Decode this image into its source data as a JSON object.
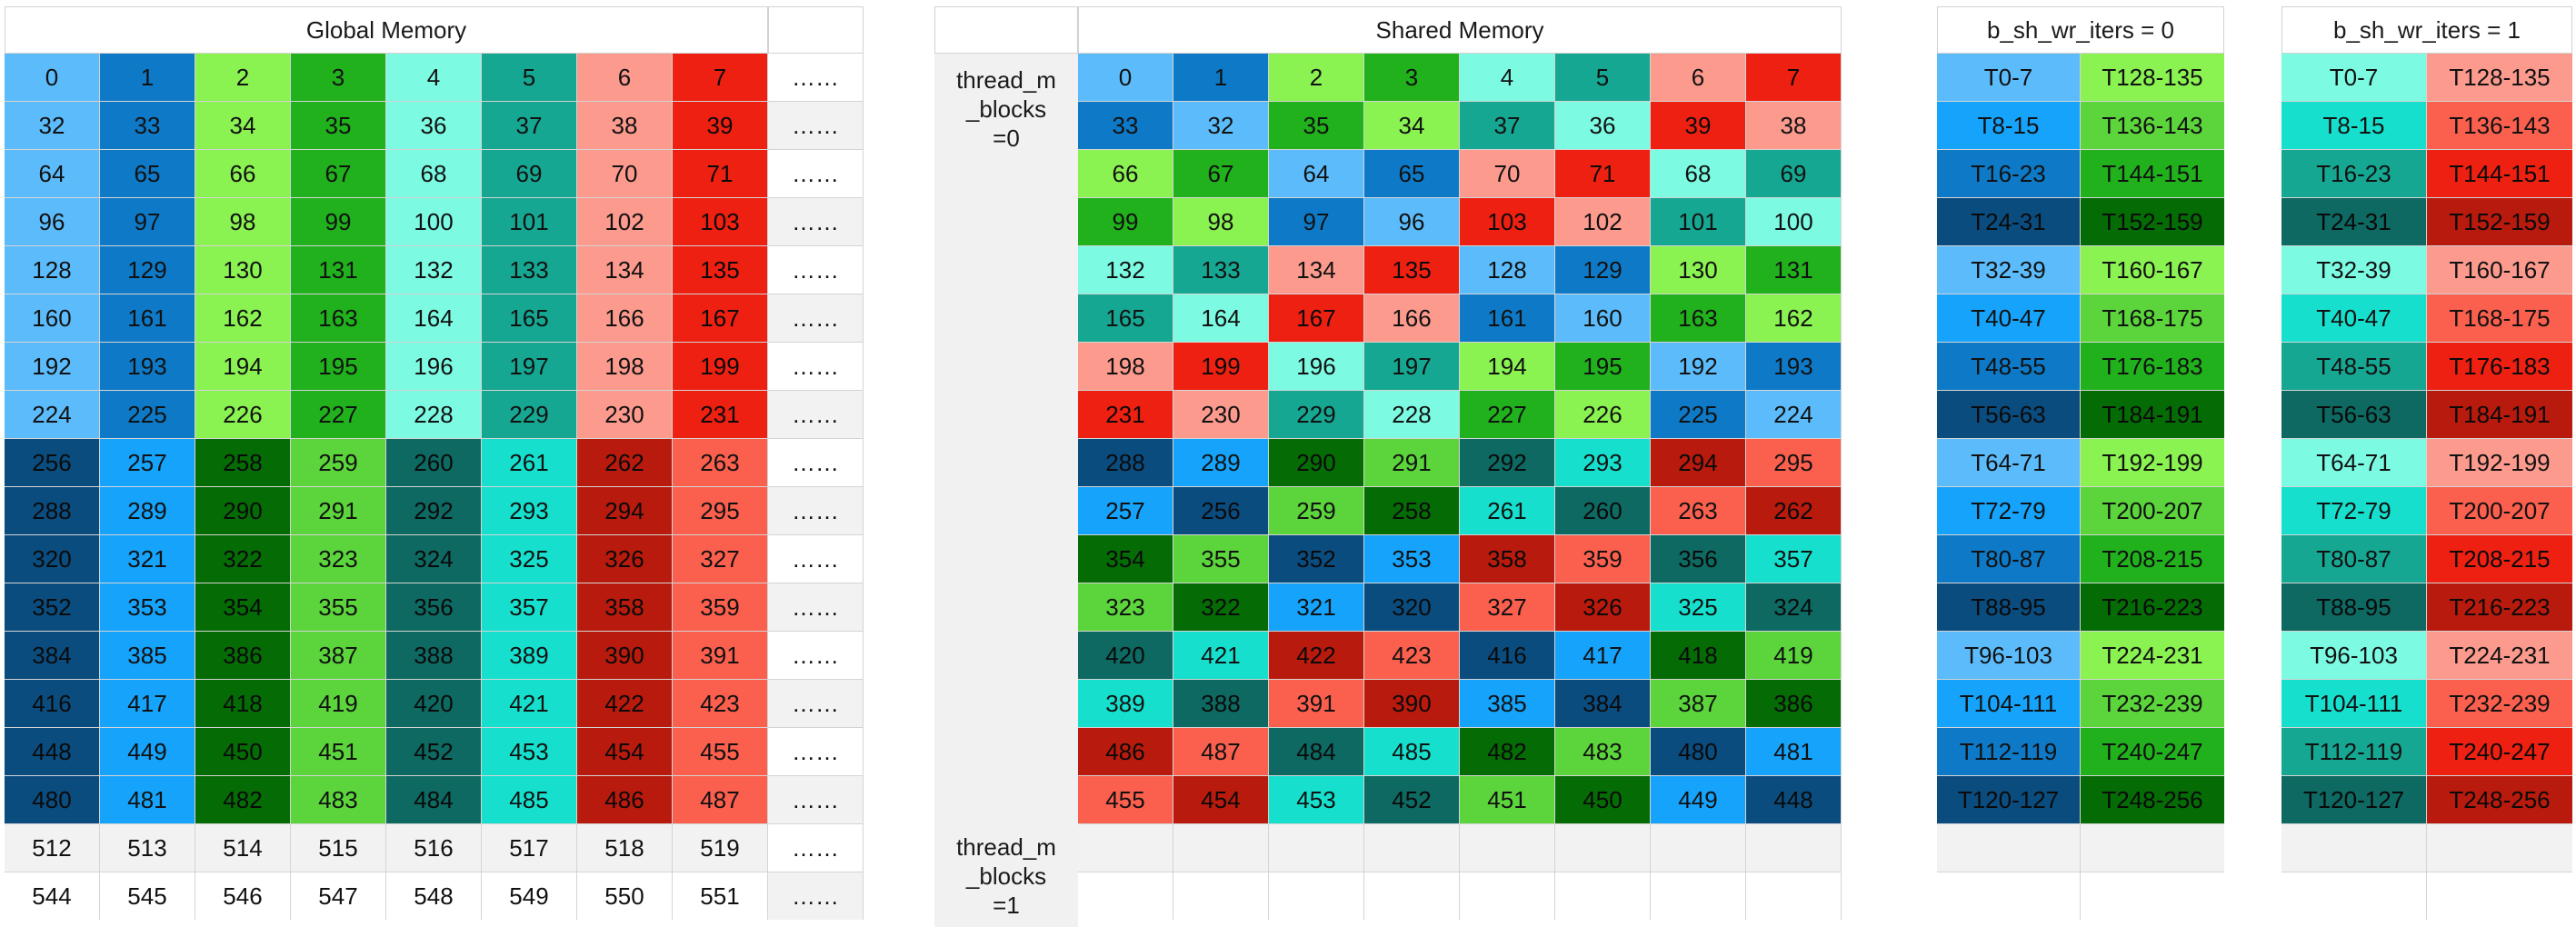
{
  "headers": {
    "global": "Global Memory",
    "shared": "Shared Memory",
    "iters0": "b_sh_wr_iters = 0",
    "iters1": "b_sh_wr_iters = 1"
  },
  "side_labels": {
    "block0": "thread_m\n_blocks\n=0",
    "block1": "thread_m\n_blocks\n=1"
  },
  "ellipsis": "……",
  "palette": {
    "lb": "#5cbcfb",
    "mb": "#0e7ac7",
    "db": "#0b4c7f",
    "bb": "#15a3fb",
    "lg": "#8af251",
    "mg": "#20b11c",
    "dg": "#056b05",
    "gg": "#5bd53b",
    "lc": "#7cfbe2",
    "mt": "#16a792",
    "dt": "#0d6961",
    "ct": "#16e0cd",
    "lr": "#fc9a8e",
    "rd": "#ee2012",
    "dr": "#b81a0d",
    "sr": "#fb5f4e",
    "wh": "#ffffff",
    "gy": "#f2f2f2"
  },
  "global_grid": {
    "values": [
      [
        0,
        1,
        2,
        3,
        4,
        5,
        6,
        7
      ],
      [
        32,
        33,
        34,
        35,
        36,
        37,
        38,
        39
      ],
      [
        64,
        65,
        66,
        67,
        68,
        69,
        70,
        71
      ],
      [
        96,
        97,
        98,
        99,
        100,
        101,
        102,
        103
      ],
      [
        128,
        129,
        130,
        131,
        132,
        133,
        134,
        135
      ],
      [
        160,
        161,
        162,
        163,
        164,
        165,
        166,
        167
      ],
      [
        192,
        193,
        194,
        195,
        196,
        197,
        198,
        199
      ],
      [
        224,
        225,
        226,
        227,
        228,
        229,
        230,
        231
      ],
      [
        256,
        257,
        258,
        259,
        260,
        261,
        262,
        263
      ],
      [
        288,
        289,
        290,
        291,
        292,
        293,
        294,
        295
      ],
      [
        320,
        321,
        322,
        323,
        324,
        325,
        326,
        327
      ],
      [
        352,
        353,
        354,
        355,
        356,
        357,
        358,
        359
      ],
      [
        384,
        385,
        386,
        387,
        388,
        389,
        390,
        391
      ],
      [
        416,
        417,
        418,
        419,
        420,
        421,
        422,
        423
      ],
      [
        448,
        449,
        450,
        451,
        452,
        453,
        454,
        455
      ],
      [
        480,
        481,
        482,
        483,
        484,
        485,
        486,
        487
      ],
      [
        512,
        513,
        514,
        515,
        516,
        517,
        518,
        519
      ],
      [
        544,
        545,
        546,
        547,
        548,
        549,
        550,
        551
      ]
    ],
    "colors": [
      [
        "lb",
        "mb",
        "lg",
        "mg",
        "lc",
        "mt",
        "lr",
        "rd"
      ],
      [
        "lb",
        "mb",
        "lg",
        "mg",
        "lc",
        "mt",
        "lr",
        "rd"
      ],
      [
        "lb",
        "mb",
        "lg",
        "mg",
        "lc",
        "mt",
        "lr",
        "rd"
      ],
      [
        "lb",
        "mb",
        "lg",
        "mg",
        "lc",
        "mt",
        "lr",
        "rd"
      ],
      [
        "lb",
        "mb",
        "lg",
        "mg",
        "lc",
        "mt",
        "lr",
        "rd"
      ],
      [
        "lb",
        "mb",
        "lg",
        "mg",
        "lc",
        "mt",
        "lr",
        "rd"
      ],
      [
        "lb",
        "mb",
        "lg",
        "mg",
        "lc",
        "mt",
        "lr",
        "rd"
      ],
      [
        "lb",
        "mb",
        "lg",
        "mg",
        "lc",
        "mt",
        "lr",
        "rd"
      ],
      [
        "db",
        "bb",
        "dg",
        "gg",
        "dt",
        "ct",
        "dr",
        "sr"
      ],
      [
        "db",
        "bb",
        "dg",
        "gg",
        "dt",
        "ct",
        "dr",
        "sr"
      ],
      [
        "db",
        "bb",
        "dg",
        "gg",
        "dt",
        "ct",
        "dr",
        "sr"
      ],
      [
        "db",
        "bb",
        "dg",
        "gg",
        "dt",
        "ct",
        "dr",
        "sr"
      ],
      [
        "db",
        "bb",
        "dg",
        "gg",
        "dt",
        "ct",
        "dr",
        "sr"
      ],
      [
        "db",
        "bb",
        "dg",
        "gg",
        "dt",
        "ct",
        "dr",
        "sr"
      ],
      [
        "db",
        "bb",
        "dg",
        "gg",
        "dt",
        "ct",
        "dr",
        "sr"
      ],
      [
        "db",
        "bb",
        "dg",
        "gg",
        "dt",
        "ct",
        "dr",
        "sr"
      ],
      [
        "gy",
        "gy",
        "gy",
        "gy",
        "gy",
        "gy",
        "gy",
        "gy"
      ],
      [
        "wh",
        "wh",
        "wh",
        "wh",
        "wh",
        "wh",
        "wh",
        "wh"
      ]
    ]
  },
  "shared_grid": {
    "values": [
      [
        0,
        1,
        2,
        3,
        4,
        5,
        6,
        7
      ],
      [
        33,
        32,
        35,
        34,
        37,
        36,
        39,
        38
      ],
      [
        66,
        67,
        64,
        65,
        70,
        71,
        68,
        69
      ],
      [
        99,
        98,
        97,
        96,
        103,
        102,
        101,
        100
      ],
      [
        132,
        133,
        134,
        135,
        128,
        129,
        130,
        131
      ],
      [
        165,
        164,
        167,
        166,
        161,
        160,
        163,
        162
      ],
      [
        198,
        199,
        196,
        197,
        194,
        195,
        192,
        193
      ],
      [
        231,
        230,
        229,
        228,
        227,
        226,
        225,
        224
      ],
      [
        288,
        289,
        290,
        291,
        292,
        293,
        294,
        295
      ],
      [
        257,
        256,
        259,
        258,
        261,
        260,
        263,
        262
      ],
      [
        354,
        355,
        352,
        353,
        358,
        359,
        356,
        357
      ],
      [
        323,
        322,
        321,
        320,
        327,
        326,
        325,
        324
      ],
      [
        420,
        421,
        422,
        423,
        416,
        417,
        418,
        419
      ],
      [
        389,
        388,
        391,
        390,
        385,
        384,
        387,
        386
      ],
      [
        486,
        487,
        484,
        485,
        482,
        483,
        480,
        481
      ],
      [
        455,
        454,
        453,
        452,
        451,
        450,
        449,
        448
      ],
      [
        "",
        "",
        "",
        "",
        "",
        "",
        "",
        ""
      ],
      [
        "",
        "",
        "",
        "",
        "",
        "",
        "",
        ""
      ]
    ],
    "colors": [
      [
        "lb",
        "mb",
        "lg",
        "mg",
        "lc",
        "mt",
        "lr",
        "rd"
      ],
      [
        "mb",
        "lb",
        "mg",
        "lg",
        "mt",
        "lc",
        "rd",
        "lr"
      ],
      [
        "lg",
        "mg",
        "lb",
        "mb",
        "lr",
        "rd",
        "lc",
        "mt"
      ],
      [
        "mg",
        "lg",
        "mb",
        "lb",
        "rd",
        "lr",
        "mt",
        "lc"
      ],
      [
        "lc",
        "mt",
        "lr",
        "rd",
        "lb",
        "mb",
        "lg",
        "mg"
      ],
      [
        "mt",
        "lc",
        "rd",
        "lr",
        "mb",
        "lb",
        "mg",
        "lg"
      ],
      [
        "lr",
        "rd",
        "lc",
        "mt",
        "lg",
        "mg",
        "lb",
        "mb"
      ],
      [
        "rd",
        "lr",
        "mt",
        "lc",
        "mg",
        "lg",
        "mb",
        "lb"
      ],
      [
        "db",
        "bb",
        "dg",
        "gg",
        "dt",
        "ct",
        "dr",
        "sr"
      ],
      [
        "bb",
        "db",
        "gg",
        "dg",
        "ct",
        "dt",
        "sr",
        "dr"
      ],
      [
        "dg",
        "gg",
        "db",
        "bb",
        "dr",
        "sr",
        "dt",
        "ct"
      ],
      [
        "gg",
        "dg",
        "bb",
        "db",
        "sr",
        "dr",
        "ct",
        "dt"
      ],
      [
        "dt",
        "ct",
        "dr",
        "sr",
        "db",
        "bb",
        "dg",
        "gg"
      ],
      [
        "ct",
        "dt",
        "sr",
        "dr",
        "bb",
        "db",
        "gg",
        "dg"
      ],
      [
        "dr",
        "sr",
        "dt",
        "ct",
        "dg",
        "gg",
        "db",
        "bb"
      ],
      [
        "sr",
        "dr",
        "ct",
        "dt",
        "gg",
        "dg",
        "bb",
        "db"
      ],
      [
        "gy",
        "gy",
        "gy",
        "gy",
        "gy",
        "gy",
        "gy",
        "gy"
      ],
      [
        "wh",
        "wh",
        "wh",
        "wh",
        "wh",
        "wh",
        "wh",
        "wh"
      ]
    ]
  },
  "iters0_grid": {
    "values": [
      [
        "T0-7",
        "T128-135"
      ],
      [
        "T8-15",
        "T136-143"
      ],
      [
        "T16-23",
        "T144-151"
      ],
      [
        "T24-31",
        "T152-159"
      ],
      [
        "T32-39",
        "T160-167"
      ],
      [
        "T40-47",
        "T168-175"
      ],
      [
        "T48-55",
        "T176-183"
      ],
      [
        "T56-63",
        "T184-191"
      ],
      [
        "T64-71",
        "T192-199"
      ],
      [
        "T72-79",
        "T200-207"
      ],
      [
        "T80-87",
        "T208-215"
      ],
      [
        "T88-95",
        "T216-223"
      ],
      [
        "T96-103",
        "T224-231"
      ],
      [
        "T104-111",
        "T232-239"
      ],
      [
        "T112-119",
        "T240-247"
      ],
      [
        "T120-127",
        "T248-256"
      ],
      [
        "",
        ""
      ],
      [
        "",
        ""
      ]
    ],
    "colors": [
      [
        "lb",
        "lg"
      ],
      [
        "bb",
        "gg"
      ],
      [
        "mb",
        "mg"
      ],
      [
        "db",
        "dg"
      ],
      [
        "lb",
        "lg"
      ],
      [
        "bb",
        "gg"
      ],
      [
        "mb",
        "mg"
      ],
      [
        "db",
        "dg"
      ],
      [
        "lb",
        "lg"
      ],
      [
        "bb",
        "gg"
      ],
      [
        "mb",
        "mg"
      ],
      [
        "db",
        "dg"
      ],
      [
        "lb",
        "lg"
      ],
      [
        "bb",
        "gg"
      ],
      [
        "mb",
        "mg"
      ],
      [
        "db",
        "dg"
      ],
      [
        "gy",
        "gy"
      ],
      [
        "wh",
        "wh"
      ]
    ]
  },
  "iters1_grid": {
    "values": [
      [
        "T0-7",
        "T128-135"
      ],
      [
        "T8-15",
        "T136-143"
      ],
      [
        "T16-23",
        "T144-151"
      ],
      [
        "T24-31",
        "T152-159"
      ],
      [
        "T32-39",
        "T160-167"
      ],
      [
        "T40-47",
        "T168-175"
      ],
      [
        "T48-55",
        "T176-183"
      ],
      [
        "T56-63",
        "T184-191"
      ],
      [
        "T64-71",
        "T192-199"
      ],
      [
        "T72-79",
        "T200-207"
      ],
      [
        "T80-87",
        "T208-215"
      ],
      [
        "T88-95",
        "T216-223"
      ],
      [
        "T96-103",
        "T224-231"
      ],
      [
        "T104-111",
        "T232-239"
      ],
      [
        "T112-119",
        "T240-247"
      ],
      [
        "T120-127",
        "T248-256"
      ],
      [
        "",
        ""
      ],
      [
        "",
        ""
      ]
    ],
    "colors": [
      [
        "lc",
        "lr"
      ],
      [
        "ct",
        "sr"
      ],
      [
        "mt",
        "rd"
      ],
      [
        "dt",
        "dr"
      ],
      [
        "lc",
        "lr"
      ],
      [
        "ct",
        "sr"
      ],
      [
        "mt",
        "rd"
      ],
      [
        "dt",
        "dr"
      ],
      [
        "lc",
        "lr"
      ],
      [
        "ct",
        "sr"
      ],
      [
        "mt",
        "rd"
      ],
      [
        "dt",
        "dr"
      ],
      [
        "lc",
        "lr"
      ],
      [
        "ct",
        "sr"
      ],
      [
        "mt",
        "rd"
      ],
      [
        "dt",
        "dr"
      ],
      [
        "gy",
        "gy"
      ],
      [
        "wh",
        "wh"
      ]
    ]
  }
}
